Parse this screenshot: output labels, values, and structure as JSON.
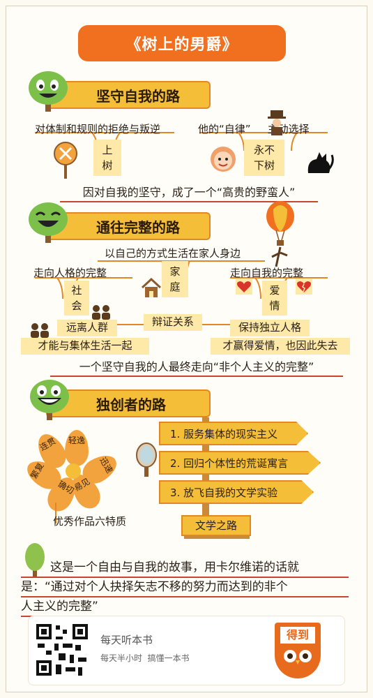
{
  "title": "《树上的男爵》",
  "sections": [
    {
      "heading": "坚守自我的路",
      "left_caption": "对体制和规则的拒绝与叛逆",
      "left_box": "上\n树",
      "right_caption_1": "他的",
      "right_caption_2": "“自律”",
      "right_caption_3": "主动选择",
      "right_box": "永不\n下树",
      "conclusion": "因对自我的坚守，成了一个“高贵的野蛮人”"
    },
    {
      "heading": "通往完整的路",
      "top_caption": "以自己的方式生活在家人身边",
      "center_box": "家\n庭",
      "left_caption": "走向人格的完整",
      "left_box": "社\n会",
      "right_caption": "走向自我的完整",
      "right_box": "爱\n情",
      "link_left": "远离人群",
      "link_mid": "辩证关系",
      "link_right": "保持独立人格",
      "left_sub": "才能与集体生活一起",
      "right_sub": "才赢得爱情，也因此失去",
      "conclusion": "一个坚守自我的人最终走向“非个人主义的完整”"
    },
    {
      "heading": "独创者的路",
      "petals": [
        "轻逸",
        "迅速",
        "易见",
        "确切",
        "繁复",
        "连贯"
      ],
      "flower_caption": "优秀作品六特质",
      "signs": [
        "1. 服务集体的现实主义",
        "2. 回归个体性的荒诞寓言",
        "3. 放飞自我的文学实验"
      ],
      "post_label": "文学之路"
    }
  ],
  "quote_line_1": "这是一个自由与自我的故事，用卡尔维诺的话就",
  "quote_line_2": "是：“通过对个人抉择矢志不移的努力而达到的非个",
  "quote_line_3": "人主义的完整”",
  "footer": {
    "brand_name": "每天听本书",
    "slogan": "每天半小时  搞懂一本书",
    "logo_text": "得到"
  },
  "colors": {
    "orange": "#f0701f",
    "yellow": "#f4be39",
    "light_yellow": "#ffe9a8",
    "red_line": "#c8452f",
    "tree_green": "#7cc04a"
  }
}
